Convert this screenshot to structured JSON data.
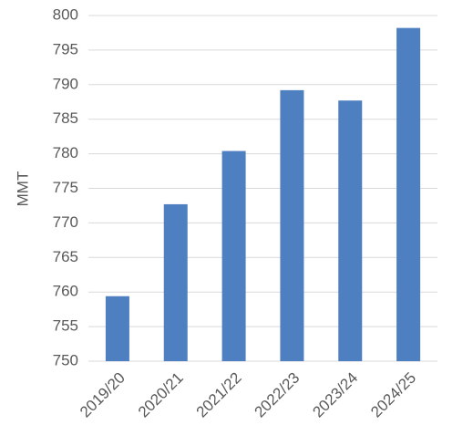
{
  "chart_data": {
    "type": "bar",
    "y_label": "MMT",
    "categories": [
      "2019/20",
      "2020/21",
      "2021/22",
      "2022/23",
      "2023/24",
      "2024/25"
    ],
    "values": [
      759.4,
      772.7,
      780.4,
      789.2,
      787.7,
      798.2
    ],
    "color": "#4e7fc0",
    "ylim": [
      750,
      800
    ],
    "yticks": [
      750,
      755,
      760,
      765,
      770,
      775,
      780,
      785,
      790,
      795,
      800
    ],
    "grid": true
  }
}
